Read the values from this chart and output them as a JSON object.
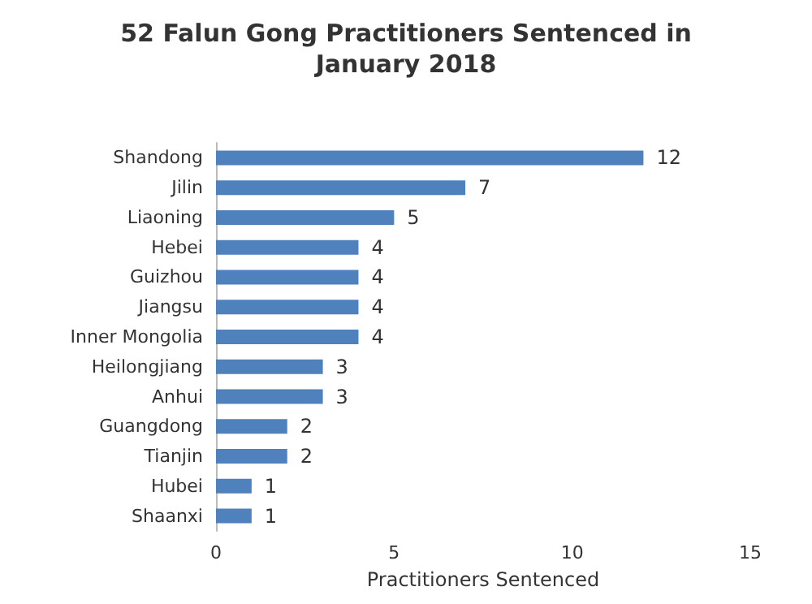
{
  "chart_data": {
    "type": "bar",
    "orientation": "horizontal",
    "title": "52 Falun Gong Practitioners Sentenced in\nJanuary 2018",
    "xlabel": "Practitioners Sentenced",
    "categories": [
      "Shandong",
      "Jilin",
      "Liaoning",
      "Hebei",
      "Guizhou",
      "Jiangsu",
      "Inner Mongolia",
      "Heilongjiang",
      "Anhui",
      "Guangdong",
      "Tianjin",
      "Hubei",
      "Shaanxi"
    ],
    "values": [
      12,
      7,
      5,
      4,
      4,
      4,
      4,
      3,
      3,
      2,
      2,
      1,
      1
    ],
    "color": "#4f81bd",
    "xlim": [
      0,
      15
    ],
    "xticks": [
      0,
      5,
      10,
      15
    ],
    "data_labels": true
  }
}
